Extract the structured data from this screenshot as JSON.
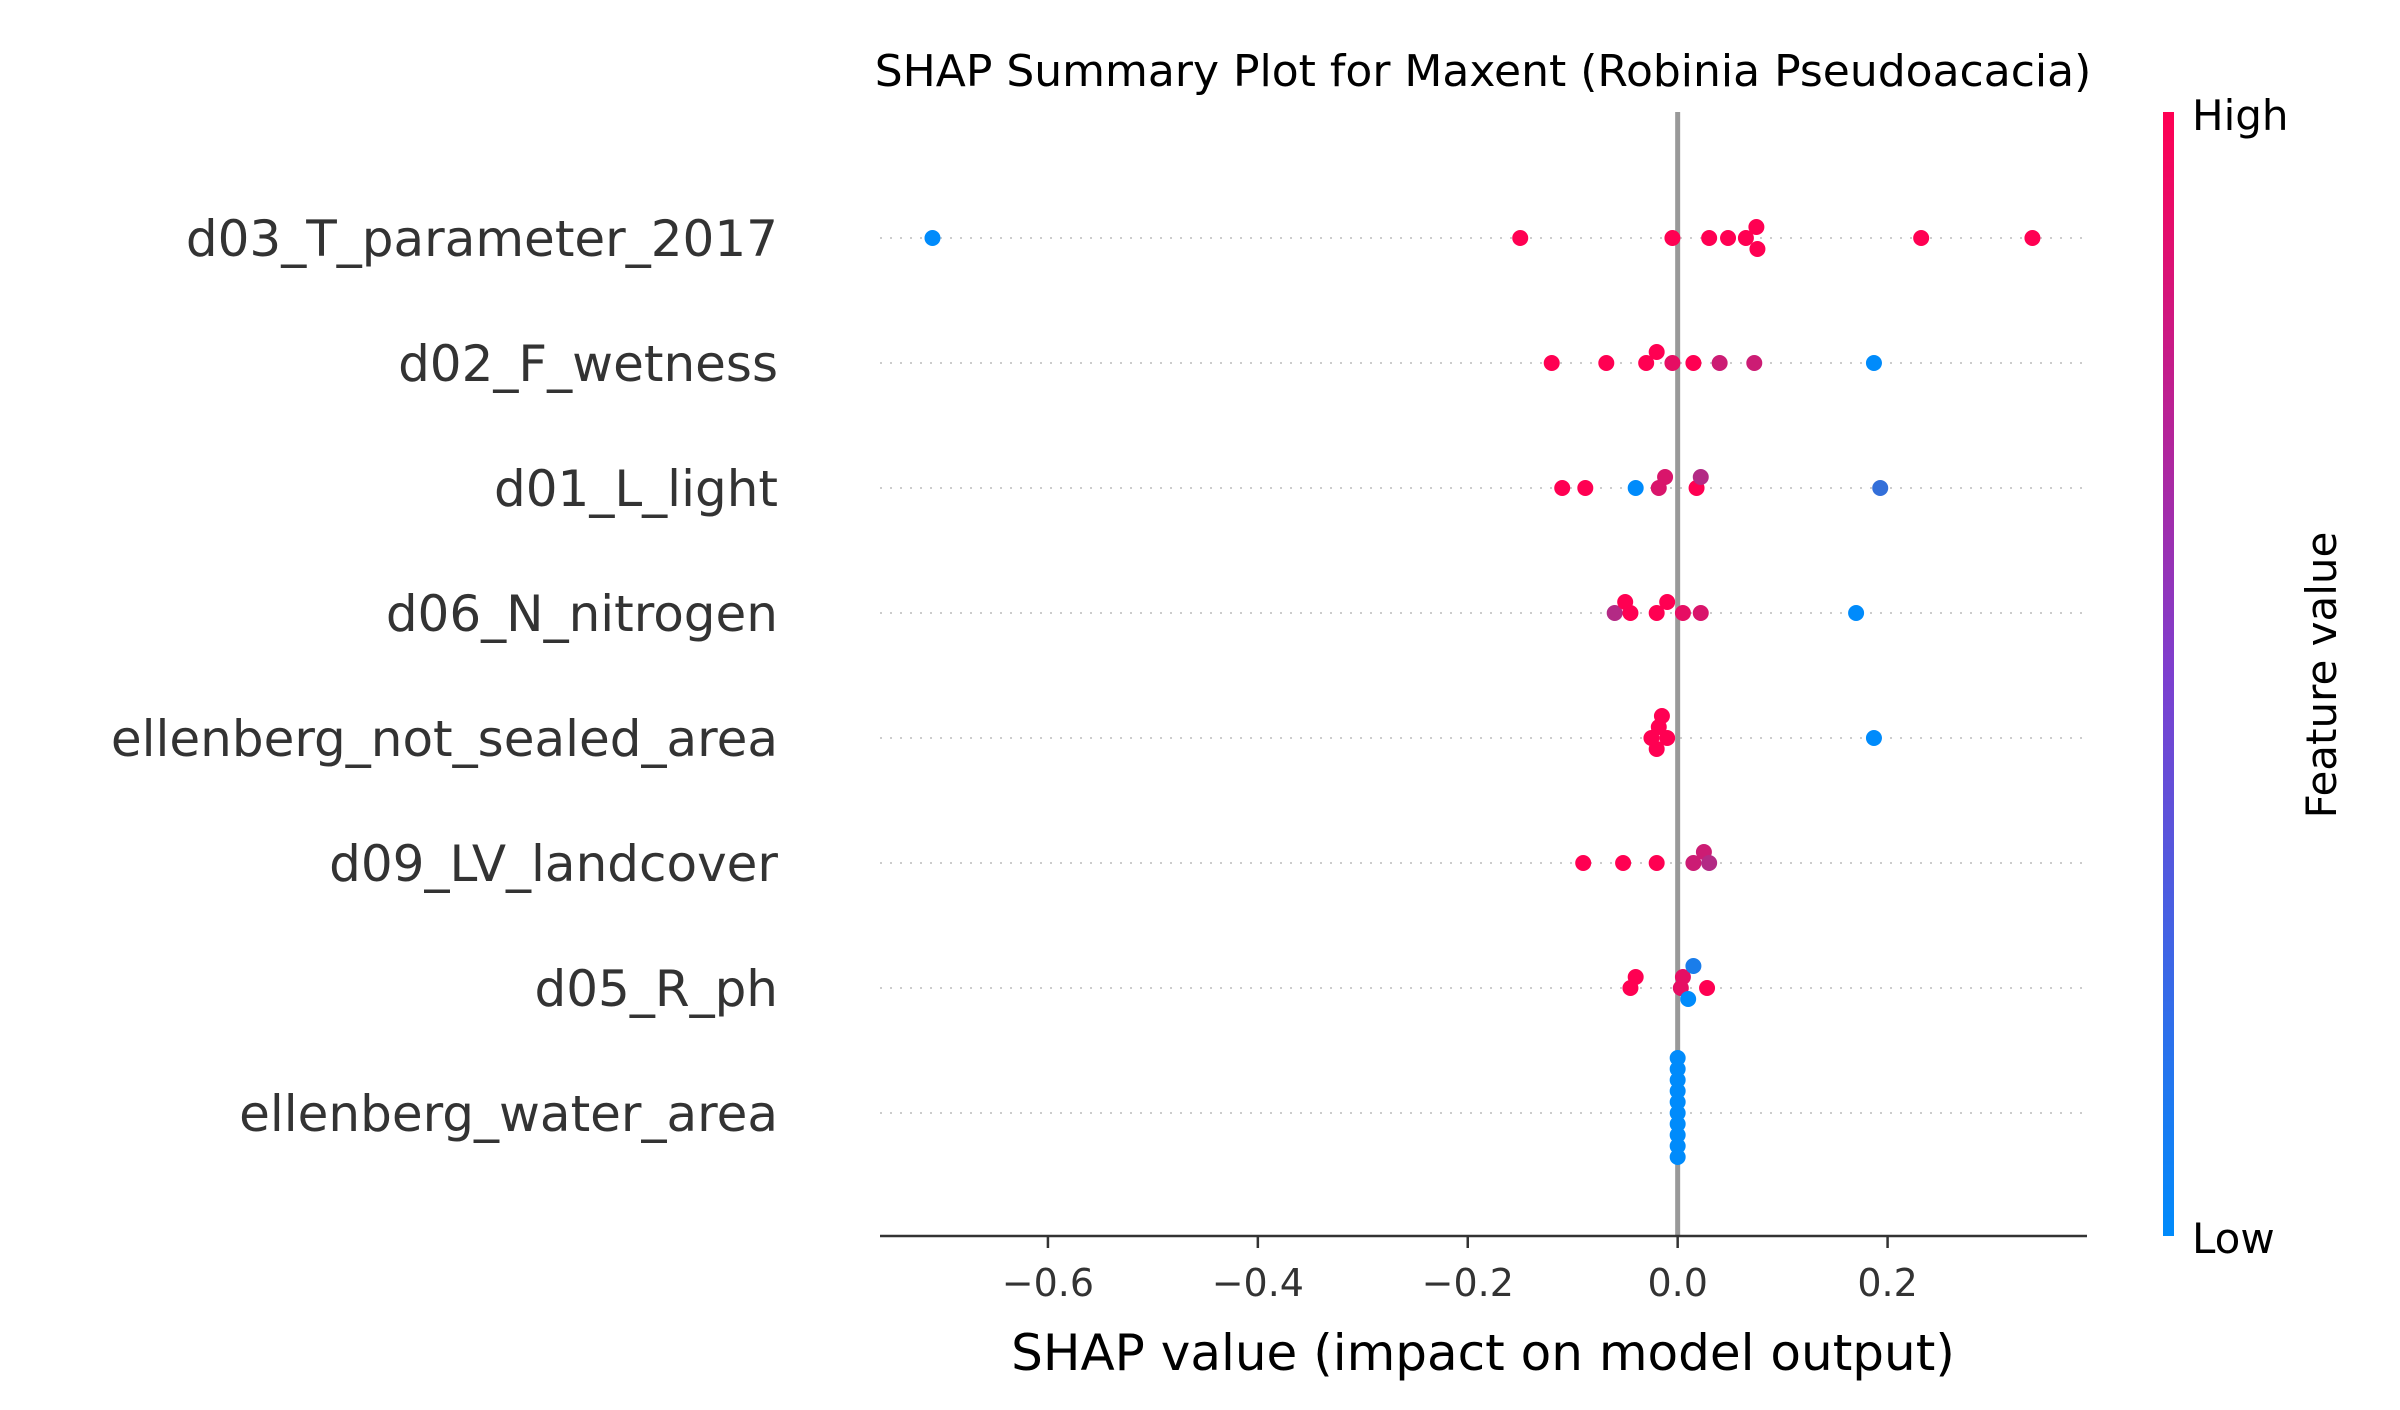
{
  "chart_data": {
    "type": "scatter",
    "title": "SHAP Summary Plot for Maxent (Robinia Pseudoacacia)",
    "xlabel": "SHAP value (impact on model output)",
    "xlim": [
      -0.76,
      0.39
    ],
    "x_ticks": [
      -0.6,
      -0.4,
      -0.2,
      0.0,
      0.2
    ],
    "x_tick_labels": [
      "−0.6",
      "−0.4",
      "−0.2",
      "0.0",
      "0.2"
    ],
    "colorbar": {
      "label": "Feature value",
      "high_label": "High",
      "low_label": "Low",
      "high_color": "#ff0052",
      "low_color": "#008bfb"
    },
    "features": [
      {
        "name": "d03_T_parameter_2017",
        "points": [
          {
            "x": -0.71,
            "v": 0.0
          },
          {
            "x": -0.15,
            "v": 1.0
          },
          {
            "x": -0.005,
            "v": 1.0
          },
          {
            "x": 0.03,
            "v": 1.0
          },
          {
            "x": 0.048,
            "v": 1.0
          },
          {
            "x": 0.065,
            "v": 1.0
          },
          {
            "x": 0.075,
            "v": 1.0
          },
          {
            "x": 0.076,
            "v": 1.0
          },
          {
            "x": 0.232,
            "v": 1.0
          },
          {
            "x": 0.338,
            "v": 1.0
          }
        ]
      },
      {
        "name": "d02_F_wetness",
        "points": [
          {
            "x": -0.12,
            "v": 1.0
          },
          {
            "x": -0.068,
            "v": 1.0
          },
          {
            "x": -0.03,
            "v": 1.0
          },
          {
            "x": -0.02,
            "v": 1.0
          },
          {
            "x": -0.005,
            "v": 0.9
          },
          {
            "x": 0.015,
            "v": 1.0
          },
          {
            "x": 0.04,
            "v": 0.8
          },
          {
            "x": 0.073,
            "v": 0.8
          },
          {
            "x": 0.187,
            "v": 0.0
          }
        ]
      },
      {
        "name": "d01_L_light",
        "points": [
          {
            "x": -0.11,
            "v": 1.0
          },
          {
            "x": -0.088,
            "v": 1.0
          },
          {
            "x": -0.04,
            "v": 0.0
          },
          {
            "x": -0.018,
            "v": 0.85
          },
          {
            "x": -0.012,
            "v": 0.85
          },
          {
            "x": 0.018,
            "v": 1.0
          },
          {
            "x": 0.022,
            "v": 0.7
          },
          {
            "x": 0.193,
            "v": 0.2
          }
        ]
      },
      {
        "name": "d06_N_nitrogen",
        "points": [
          {
            "x": -0.06,
            "v": 0.7
          },
          {
            "x": -0.05,
            "v": 1.0
          },
          {
            "x": -0.045,
            "v": 1.0
          },
          {
            "x": -0.02,
            "v": 1.0
          },
          {
            "x": -0.01,
            "v": 1.0
          },
          {
            "x": 0.005,
            "v": 0.9
          },
          {
            "x": 0.022,
            "v": 0.85
          },
          {
            "x": 0.17,
            "v": 0.0
          }
        ]
      },
      {
        "name": "ellenberg_not_sealed_area",
        "points": [
          {
            "x": -0.025,
            "v": 1.0
          },
          {
            "x": -0.018,
            "v": 1.0
          },
          {
            "x": -0.02,
            "v": 1.0
          },
          {
            "x": -0.015,
            "v": 1.0
          },
          {
            "x": -0.01,
            "v": 1.0
          },
          {
            "x": 0.187,
            "v": 0.0
          }
        ]
      },
      {
        "name": "d09_LV_landcover",
        "points": [
          {
            "x": -0.09,
            "v": 1.0
          },
          {
            "x": -0.052,
            "v": 1.0
          },
          {
            "x": -0.02,
            "v": 1.0
          },
          {
            "x": 0.015,
            "v": 0.8
          },
          {
            "x": 0.025,
            "v": 0.8
          },
          {
            "x": 0.03,
            "v": 0.7
          }
        ]
      },
      {
        "name": "d05_R_ph",
        "points": [
          {
            "x": -0.045,
            "v": 1.0
          },
          {
            "x": -0.04,
            "v": 1.0
          },
          {
            "x": 0.003,
            "v": 0.9
          },
          {
            "x": 0.005,
            "v": 0.9
          },
          {
            "x": 0.01,
            "v": 0.0
          },
          {
            "x": 0.015,
            "v": 0.1
          },
          {
            "x": 0.028,
            "v": 1.0
          }
        ]
      },
      {
        "name": "ellenberg_water_area",
        "points": [
          {
            "x": 0.0,
            "v": 0.0
          },
          {
            "x": 0.0,
            "v": 0.0
          },
          {
            "x": 0.0,
            "v": 0.0
          },
          {
            "x": 0.0,
            "v": 0.0
          },
          {
            "x": 0.0,
            "v": 0.0
          },
          {
            "x": 0.0,
            "v": 0.0
          },
          {
            "x": 0.0,
            "v": 0.0
          },
          {
            "x": 0.0,
            "v": 0.0
          },
          {
            "x": 0.0,
            "v": 0.0
          },
          {
            "x": 0.0,
            "v": 0.0
          }
        ]
      }
    ]
  }
}
